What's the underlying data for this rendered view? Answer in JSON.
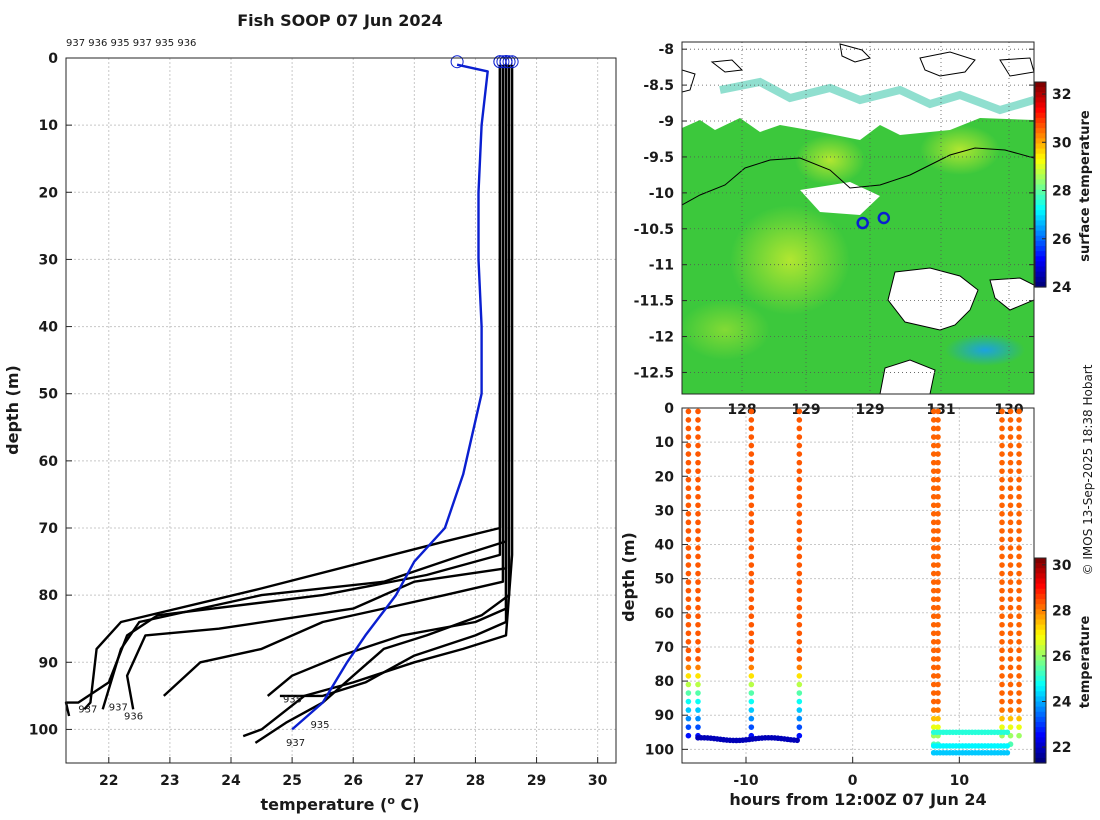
{
  "chart_data": [
    {
      "type": "line",
      "title": "Fish SOOP 07 Jun 2024",
      "xlabel": "temperature (",
      "xlabel_sup": "o",
      "xlabel_unit": " C)",
      "ylabel": "depth (m)",
      "xlim": [
        21.3,
        30.3
      ],
      "ylim": [
        0,
        105
      ],
      "xticks": [
        "22",
        "23",
        "24",
        "25",
        "26",
        "27",
        "28",
        "29",
        "30"
      ],
      "yticks": [
        "0",
        "10",
        "20",
        "30",
        "40",
        "50",
        "60",
        "70",
        "80",
        "90",
        "100"
      ],
      "deployment_ids": "937 936 935 937 935 936",
      "series": [
        {
          "name": "black-1",
          "color": "#000000",
          "points": [
            [
              28.4,
              1
            ],
            [
              28.4,
              70
            ],
            [
              27.5,
              72
            ],
            [
              24.5,
              79
            ],
            [
              22.2,
              84
            ],
            [
              21.8,
              88
            ],
            [
              21.7,
              96
            ],
            [
              21.6,
              97
            ]
          ]
        },
        {
          "name": "black-2",
          "color": "#000000",
          "points": [
            [
              28.5,
              1
            ],
            [
              28.5,
              72
            ],
            [
              27.8,
              74
            ],
            [
              26.5,
              78
            ],
            [
              24.5,
              80
            ],
            [
              22.5,
              84
            ],
            [
              22.2,
              88
            ],
            [
              22.0,
              94
            ],
            [
              21.9,
              97
            ]
          ]
        },
        {
          "name": "black-3",
          "color": "#000000",
          "points": [
            [
              28.4,
              1
            ],
            [
              28.4,
              74
            ],
            [
              27.2,
              77
            ],
            [
              25.5,
              80
            ],
            [
              22.8,
              83
            ],
            [
              22.3,
              86
            ],
            [
              22.0,
              93
            ],
            [
              21.5,
              96
            ],
            [
              21.3,
              96
            ],
            [
              21.35,
              98
            ]
          ]
        },
        {
          "name": "black-4",
          "color": "#000000",
          "points": [
            [
              28.5,
              1
            ],
            [
              28.5,
              76
            ],
            [
              27.0,
              78
            ],
            [
              26.0,
              82
            ],
            [
              23.8,
              85
            ],
            [
              22.6,
              86
            ],
            [
              22.3,
              92
            ],
            [
              22.4,
              97
            ]
          ]
        },
        {
          "name": "black-5",
          "color": "#000000",
          "points": [
            [
              28.45,
              1
            ],
            [
              28.45,
              78
            ],
            [
              27.5,
              80
            ],
            [
              25.5,
              84
            ],
            [
              24.5,
              88
            ],
            [
              23.5,
              90
            ],
            [
              22.9,
              95
            ]
          ]
        },
        {
          "name": "black-6",
          "color": "#000000",
          "points": [
            [
              28.5,
              1
            ],
            [
              28.5,
              82
            ],
            [
              28.0,
              84
            ],
            [
              26.8,
              86
            ],
            [
              25.8,
              89
            ],
            [
              25.0,
              92
            ],
            [
              24.6,
              95
            ]
          ]
        },
        {
          "name": "black-7",
          "color": "#000000",
          "points": [
            [
              28.5,
              1
            ],
            [
              28.5,
              84
            ],
            [
              28.0,
              86
            ],
            [
              27.0,
              89
            ],
            [
              26.2,
              93
            ],
            [
              25.5,
              95
            ],
            [
              24.8,
              95
            ]
          ]
        },
        {
          "name": "black-8",
          "color": "#000000",
          "points": [
            [
              28.6,
              1
            ],
            [
              28.6,
              74
            ],
            [
              28.5,
              86
            ],
            [
              27.8,
              88
            ],
            [
              27.0,
              90
            ],
            [
              26.0,
              93
            ],
            [
              25.2,
              95
            ],
            [
              24.5,
              100
            ],
            [
              24.2,
              101
            ]
          ]
        },
        {
          "name": "black-9",
          "color": "#000000",
          "points": [
            [
              28.55,
              1
            ],
            [
              28.55,
              80
            ],
            [
              28.1,
              83
            ],
            [
              27.2,
              86
            ],
            [
              26.5,
              88
            ],
            [
              26.0,
              92
            ],
            [
              25.5,
              96
            ],
            [
              24.9,
              99
            ],
            [
              24.4,
              102
            ]
          ]
        },
        {
          "name": "blue",
          "color": "#0a1fd0",
          "points": [
            [
              27.7,
              1
            ],
            [
              28.2,
              2
            ],
            [
              28.1,
              10
            ],
            [
              28.05,
              20
            ],
            [
              28.05,
              30
            ],
            [
              28.1,
              40
            ],
            [
              28.1,
              50
            ],
            [
              27.8,
              62
            ],
            [
              27.5,
              70
            ],
            [
              27.0,
              75
            ],
            [
              26.7,
              80
            ],
            [
              26.2,
              86
            ],
            [
              25.9,
              90
            ],
            [
              25.5,
              96
            ],
            [
              25.0,
              100
            ]
          ]
        }
      ],
      "labels": [
        {
          "text": "937",
          "x": 21.5,
          "y": 97.5
        },
        {
          "text": "936",
          "x": 22.25,
          "y": 98.5
        },
        {
          "text": "937",
          "x": 22.0,
          "y": 97.2
        },
        {
          "text": "935",
          "x": 25.3,
          "y": 99.8
        },
        {
          "text": "935",
          "x": 24.85,
          "y": 96
        },
        {
          "text": "937",
          "x": 24.9,
          "y": 102.5
        }
      ]
    },
    {
      "type": "heatmap",
      "ylim": [
        -12.8,
        -7.9
      ],
      "xlim": [
        127.3,
        130.3
      ],
      "yticks": [
        "-8",
        "-8.5",
        "-9",
        "-9.5",
        "-10",
        "-10.5",
        "-11",
        "-11.5",
        "-12",
        "-12.5"
      ],
      "xticks": [
        "128",
        "129",
        "129",
        "131",
        "130"
      ],
      "colorbar_label": "surface temperature",
      "colorbar_ticks": [
        "32",
        "30",
        "28",
        "26",
        "24"
      ],
      "colorbar_range": [
        24,
        32.5
      ],
      "positions": [
        [
          128.84,
          -10.42
        ],
        [
          129.02,
          -10.35
        ]
      ]
    },
    {
      "type": "scatter",
      "xlabel": "hours from 12:00Z 07 Jun 24",
      "ylabel": "depth (m)",
      "xlim": [
        -16,
        17
      ],
      "ylim": [
        0,
        104
      ],
      "xticks": [
        "-10",
        "0",
        "10"
      ],
      "yticks": [
        "0",
        "10",
        "20",
        "30",
        "40",
        "50",
        "60",
        "70",
        "80",
        "90",
        "100"
      ],
      "colorbar_label": "temperature",
      "colorbar_ticks": [
        "30",
        "28",
        "26",
        "24",
        "22"
      ],
      "colorbar_range": [
        21.3,
        30.3
      ],
      "profiles": [
        -15.4,
        -14.5,
        -9.5,
        -5.0,
        7.6,
        8.0,
        14.0,
        14.8,
        15.6
      ]
    }
  ],
  "copyright": "© IMOS 13-Sep-2025 18:38 Hobart"
}
